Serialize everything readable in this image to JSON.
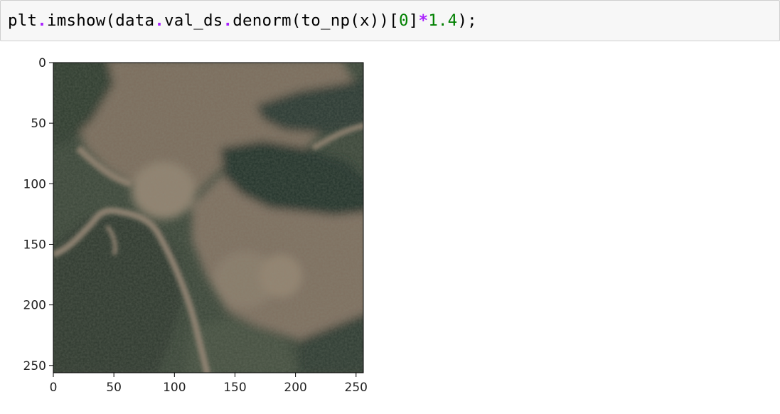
{
  "cell": {
    "code_tokens": [
      {
        "t": "plt",
        "k": "name"
      },
      {
        "t": ".",
        "k": "op"
      },
      {
        "t": "imshow",
        "k": "name"
      },
      {
        "t": "(",
        "k": "punc"
      },
      {
        "t": "data",
        "k": "name"
      },
      {
        "t": ".",
        "k": "op"
      },
      {
        "t": "val_ds",
        "k": "name"
      },
      {
        "t": ".",
        "k": "op"
      },
      {
        "t": "denorm",
        "k": "name"
      },
      {
        "t": "(",
        "k": "punc"
      },
      {
        "t": "to_np",
        "k": "name"
      },
      {
        "t": "(",
        "k": "punc"
      },
      {
        "t": "x",
        "k": "name"
      },
      {
        "t": "))[",
        "k": "punc"
      },
      {
        "t": "0",
        "k": "num"
      },
      {
        "t": "]",
        "k": "punc"
      },
      {
        "t": "*",
        "k": "op"
      },
      {
        "t": "1.4",
        "k": "num"
      },
      {
        "t": ");",
        "k": "punc"
      }
    ]
  },
  "plot": {
    "x_ticks": [
      "0",
      "50",
      "100",
      "150",
      "200",
      "250"
    ],
    "y_ticks": [
      "0",
      "50",
      "100",
      "150",
      "200",
      "250"
    ],
    "x_tick_values": [
      0,
      50,
      100,
      150,
      200,
      250
    ],
    "y_tick_values": [
      0,
      50,
      100,
      150,
      200,
      250
    ],
    "xlim": [
      0,
      256
    ],
    "ylim": [
      256,
      0
    ],
    "image_description_icon": "satellite-image",
    "colors": {
      "forest_dark": "#2e3a2e",
      "forest_mid": "#3e4a3c",
      "land_brown": "#7a6a5a",
      "land_light": "#8e7e6e",
      "river": "#9a8a7a",
      "water_dark": "#1e2a24"
    }
  }
}
